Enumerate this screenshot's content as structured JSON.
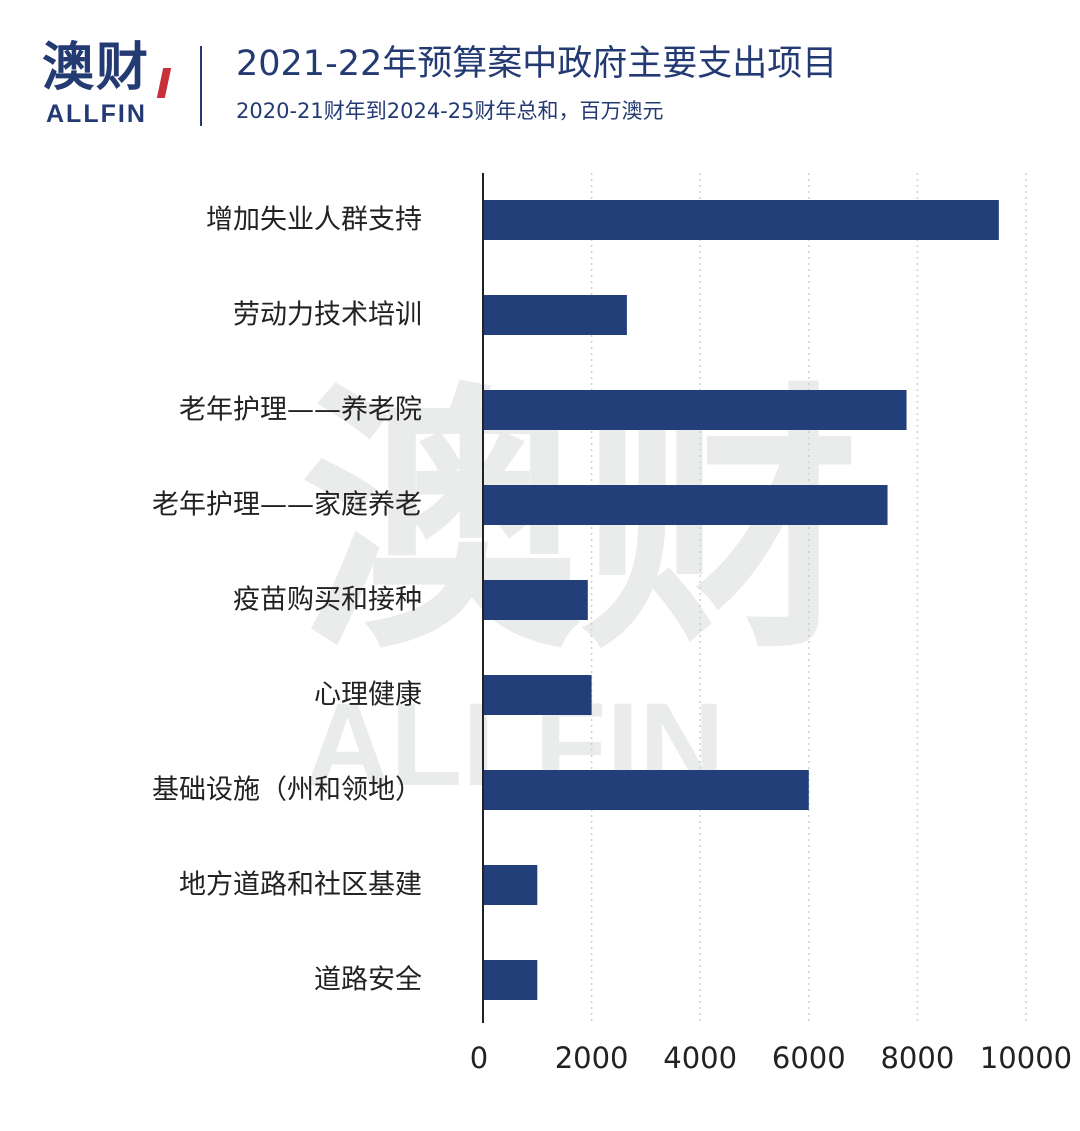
{
  "header": {
    "logo_cn": "澳财",
    "logo_en": "ALLFIN",
    "title": "2021-22年预算案中政府主要支出项目",
    "subtitle": "2020-21财年到2024-25财年总和，百万澳元"
  },
  "watermark": {
    "cn": "澳财",
    "en": "ALLFIN"
  },
  "colors": {
    "bar": "#233f7a",
    "brand": "#233a73",
    "accent": "#c8313b",
    "grid": "#cfcfcf"
  },
  "chart_data": {
    "type": "bar",
    "orientation": "horizontal",
    "categories": [
      "增加失业人群支持",
      "劳动力技术培训",
      "老年护理——养老院",
      "老年护理——家庭养老",
      "疫苗购买和接种",
      "心理健康",
      "基础设施（州和领地）",
      "地方道路和社区基建",
      "道路安全"
    ],
    "values": [
      9500,
      2650,
      7800,
      7450,
      1930,
      2000,
      6000,
      1000,
      1000
    ],
    "xlim": [
      0,
      10000
    ],
    "xticks": [
      "0",
      "2000",
      "4000",
      "6000",
      "8000",
      "10000"
    ],
    "xtick_values": [
      0,
      2000,
      4000,
      6000,
      8000,
      10000
    ],
    "grid": "vertical dotted",
    "legend": "none"
  }
}
